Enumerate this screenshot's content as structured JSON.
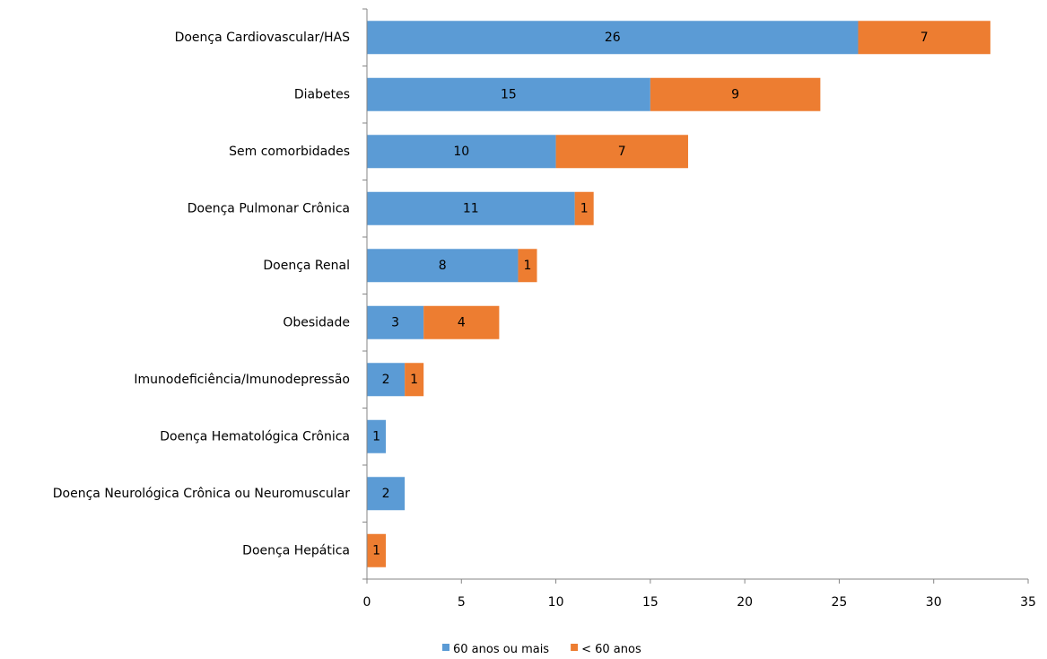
{
  "chart_data": {
    "type": "bar",
    "orientation": "horizontal",
    "stacked": true,
    "categories": [
      "Doença Cardiovascular/HAS",
      "Diabetes",
      "Sem comorbidades",
      "Doença Pulmonar  Crônica",
      "Doença Renal",
      "Obesidade",
      "Imunodeficiência/Imunodepressão",
      "Doença Hematológica  Crônica",
      "Doença Neurológica Crônica ou Neuromuscular",
      "Doença Hepática"
    ],
    "series": [
      {
        "name": "60 anos ou mais",
        "color": "#5B9BD5",
        "values": [
          26,
          15,
          10,
          11,
          8,
          3,
          2,
          1,
          2,
          0
        ]
      },
      {
        "name": "< 60 anos",
        "color": "#ED7D31",
        "values": [
          7,
          9,
          7,
          1,
          1,
          4,
          1,
          0,
          0,
          1
        ]
      }
    ],
    "xlim": [
      0,
      35
    ],
    "xticks": [
      0,
      5,
      10,
      15,
      20,
      25,
      30,
      35
    ],
    "title": "",
    "xlabel": "",
    "ylabel": "",
    "grid": false,
    "legend_position": "bottom"
  }
}
